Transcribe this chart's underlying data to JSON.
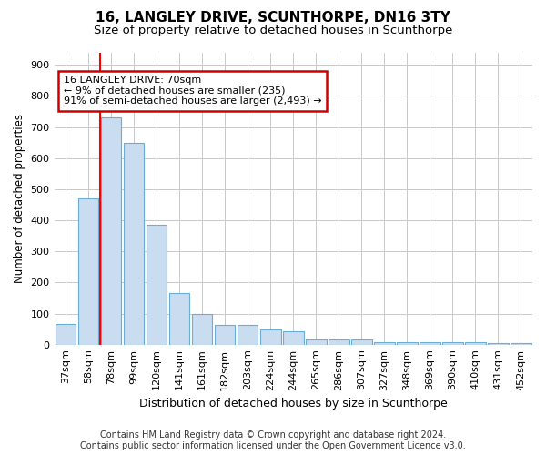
{
  "title": "16, LANGLEY DRIVE, SCUNTHORPE, DN16 3TY",
  "subtitle": "Size of property relative to detached houses in Scunthorpe",
  "xlabel": "Distribution of detached houses by size in Scunthorpe",
  "ylabel": "Number of detached properties",
  "categories": [
    "37sqm",
    "58sqm",
    "78sqm",
    "99sqm",
    "120sqm",
    "141sqm",
    "161sqm",
    "182sqm",
    "203sqm",
    "224sqm",
    "244sqm",
    "265sqm",
    "286sqm",
    "307sqm",
    "327sqm",
    "348sqm",
    "369sqm",
    "390sqm",
    "410sqm",
    "431sqm",
    "452sqm"
  ],
  "values": [
    65,
    470,
    730,
    650,
    385,
    165,
    100,
    62,
    62,
    48,
    42,
    18,
    18,
    18,
    8,
    8,
    8,
    8,
    8,
    4,
    4
  ],
  "bar_color": "#c9dcf0",
  "bar_edge_color": "#6aaed6",
  "red_line_x": 1.5,
  "annotation_text": "16 LANGLEY DRIVE: 70sqm\n← 9% of detached houses are smaller (235)\n91% of semi-detached houses are larger (2,493) →",
  "annotation_box_color": "#ffffff",
  "annotation_box_edge_color": "#cc0000",
  "footer_line1": "Contains HM Land Registry data © Crown copyright and database right 2024.",
  "footer_line2": "Contains public sector information licensed under the Open Government Licence v3.0.",
  "ylim": [
    0,
    940
  ],
  "yticks": [
    0,
    100,
    200,
    300,
    400,
    500,
    600,
    700,
    800,
    900
  ],
  "bg_color": "#ffffff",
  "grid_color": "#c8c8c8",
  "title_fontsize": 11,
  "subtitle_fontsize": 9.5,
  "xlabel_fontsize": 9,
  "ylabel_fontsize": 8.5,
  "tick_fontsize": 8,
  "footer_fontsize": 7,
  "annotation_fontsize": 8
}
